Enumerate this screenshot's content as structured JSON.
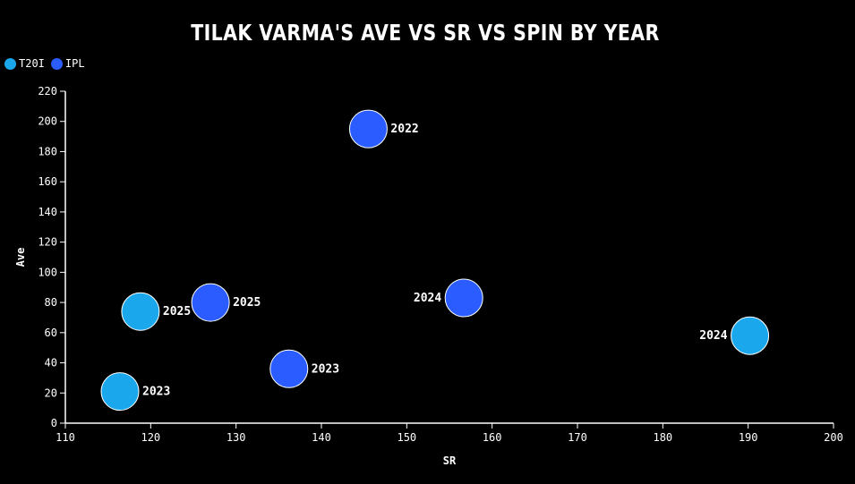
{
  "chart_data": {
    "type": "scatter",
    "title": "TILAK VARMA'S AVE VS SR VS SPIN BY YEAR",
    "xlabel": "SR",
    "ylabel": "Ave",
    "xlim": [
      110,
      200
    ],
    "ylim": [
      0,
      220
    ],
    "xticks": [
      110,
      120,
      130,
      140,
      150,
      160,
      170,
      180,
      190,
      200
    ],
    "yticks": [
      0,
      20,
      40,
      60,
      80,
      100,
      120,
      140,
      160,
      180,
      200,
      220
    ],
    "grid": false,
    "legend_position": "top-left",
    "series": [
      {
        "name": "T20I",
        "color": "#1aa7ec",
        "points": [
          {
            "x": 118.8,
            "y": 74,
            "label": "2025",
            "label_side": "right"
          },
          {
            "x": 116.4,
            "y": 21,
            "label": "2023",
            "label_side": "right"
          },
          {
            "x": 190.2,
            "y": 58,
            "label": "2024",
            "label_side": "left"
          }
        ]
      },
      {
        "name": "IPL",
        "color": "#2a5cff",
        "points": [
          {
            "x": 145.5,
            "y": 195,
            "label": "2022",
            "label_side": "right"
          },
          {
            "x": 127.0,
            "y": 80,
            "label": "2025",
            "label_side": "right"
          },
          {
            "x": 156.7,
            "y": 83,
            "label": "2024",
            "label_side": "left"
          },
          {
            "x": 136.2,
            "y": 36,
            "label": "2023",
            "label_side": "right"
          }
        ]
      }
    ]
  }
}
